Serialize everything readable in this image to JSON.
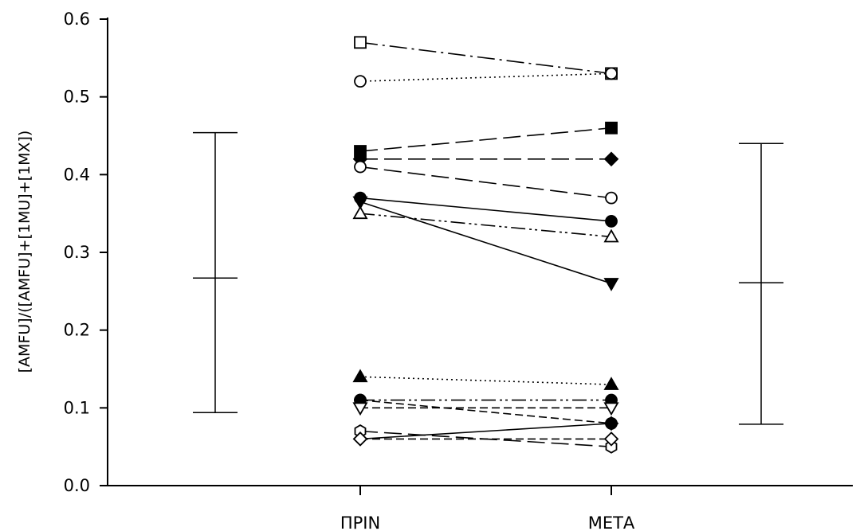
{
  "chart_data": {
    "type": "line",
    "ylabel": "[AMFU]/([AMFU]+[1MU]+[1MX])",
    "xlabel": "",
    "ylim": [
      0,
      0.6
    ],
    "yticks": [
      "0.0",
      "0.1",
      "0.2",
      "0.3",
      "0.4",
      "0.5",
      "0.6"
    ],
    "categories": [
      "ΠΡΙΝ",
      "ΜΕΤΑ"
    ],
    "grid": false,
    "legend": "none",
    "series": [
      {
        "values": [
          0.57,
          0.53
        ],
        "marker": "square",
        "fill": "open",
        "dash": "dashdot"
      },
      {
        "values": [
          0.52,
          0.53
        ],
        "marker": "circle",
        "fill": "open",
        "dash": "dotted"
      },
      {
        "values": [
          0.43,
          0.46
        ],
        "marker": "square",
        "fill": "filled",
        "dash": "longdash"
      },
      {
        "values": [
          0.42,
          0.42
        ],
        "marker": "diamond",
        "fill": "filled",
        "dash": "longdash"
      },
      {
        "values": [
          0.41,
          0.37
        ],
        "marker": "circle",
        "fill": "open",
        "dash": "longdash"
      },
      {
        "values": [
          0.37,
          0.34
        ],
        "marker": "circle",
        "fill": "filled",
        "dash": "solid"
      },
      {
        "values": [
          0.365,
          0.26
        ],
        "marker": "triangle-down",
        "fill": "filled",
        "dash": "solid"
      },
      {
        "values": [
          0.35,
          0.32
        ],
        "marker": "triangle-up",
        "fill": "open",
        "dash": "dashdotdot"
      },
      {
        "values": [
          0.14,
          0.13
        ],
        "marker": "triangle-up",
        "fill": "filled",
        "dash": "dotted"
      },
      {
        "values": [
          0.11,
          0.11
        ],
        "marker": "circle",
        "fill": "filled",
        "dash": "dashdotdot"
      },
      {
        "values": [
          0.11,
          0.08
        ],
        "marker": "circle",
        "fill": "filled",
        "dash": "dashed"
      },
      {
        "values": [
          0.1,
          0.1
        ],
        "marker": "triangle-down",
        "fill": "open",
        "dash": "dashed"
      },
      {
        "values": [
          0.07,
          0.05
        ],
        "marker": "hexagon",
        "fill": "open",
        "dash": "longdash"
      },
      {
        "values": [
          0.06,
          0.08
        ],
        "marker": "diamond",
        "fill": "filled",
        "dash": "solid"
      },
      {
        "values": [
          0.06,
          0.06
        ],
        "marker": "diamond",
        "fill": "open",
        "dash": "dashed"
      }
    ],
    "error_bars": [
      {
        "side": "left",
        "mean": 0.267,
        "low": 0.094,
        "high": 0.454
      },
      {
        "side": "right",
        "mean": 0.261,
        "low": 0.079,
        "high": 0.44
      }
    ],
    "colors": {
      "ink": "#000000",
      "background": "#ffffff"
    }
  }
}
